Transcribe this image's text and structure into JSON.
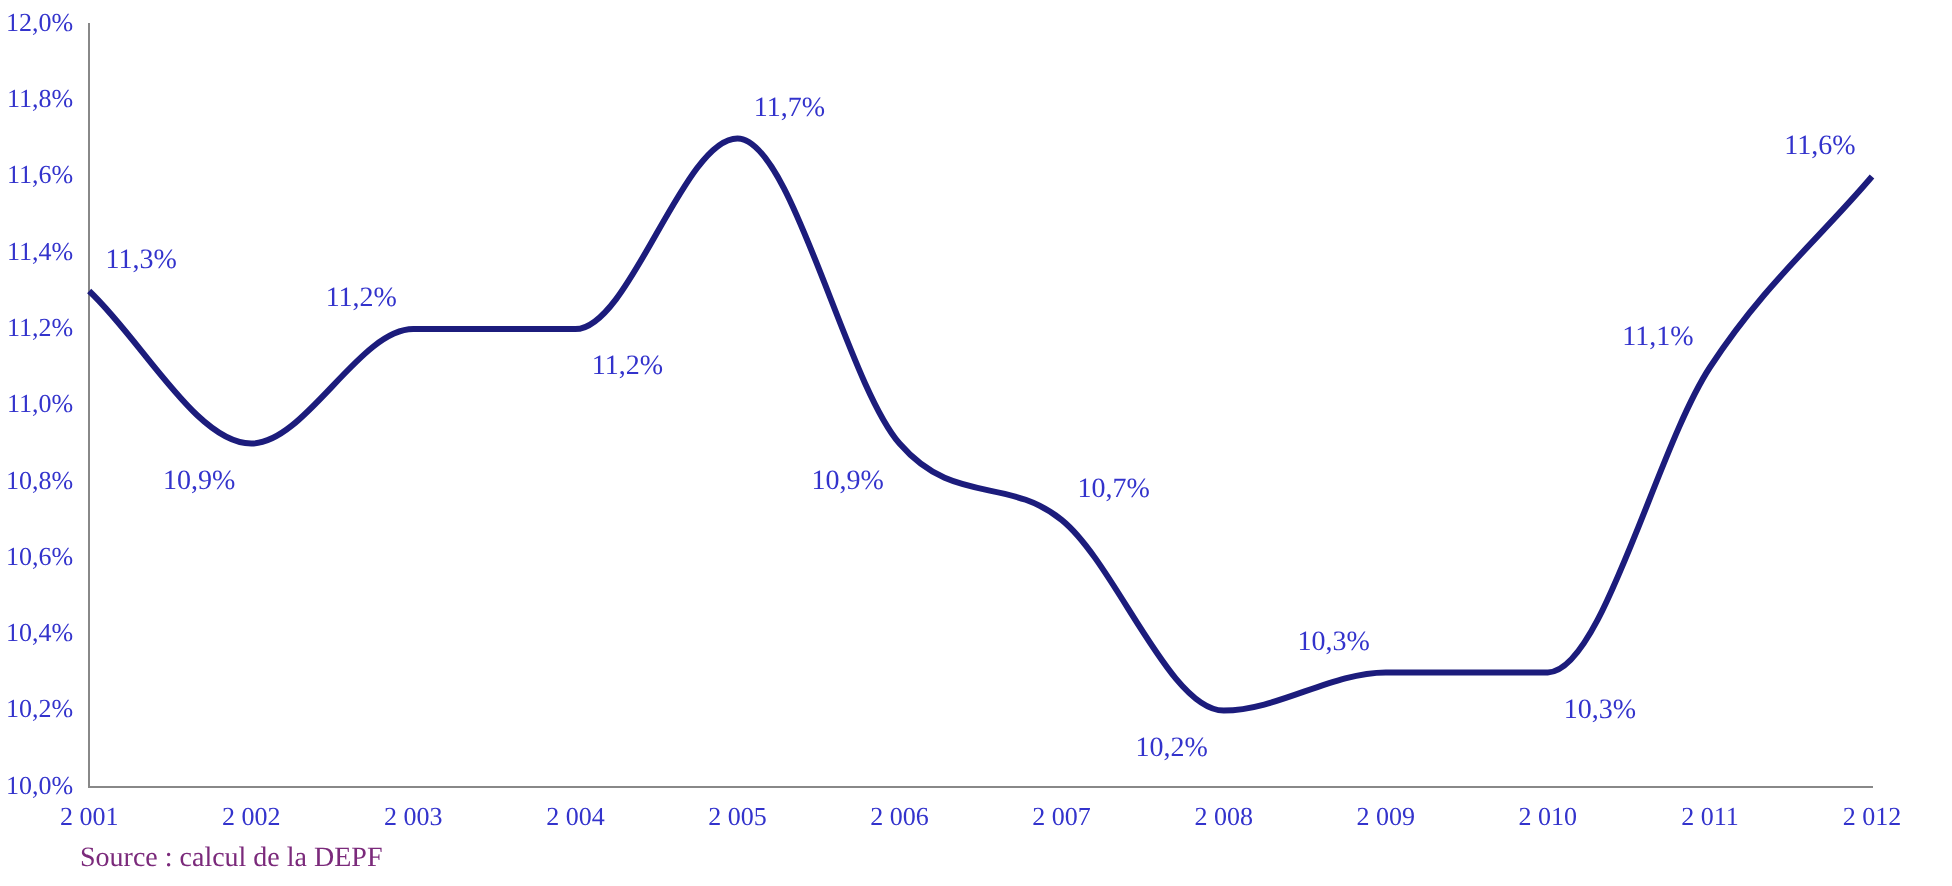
{
  "chart_data": {
    "type": "line",
    "categories": [
      "2 001",
      "2 002",
      "2 003",
      "2 004",
      "2 005",
      "2 006",
      "2 007",
      "2 008",
      "2 009",
      "2 010",
      "2 011",
      "2 012"
    ],
    "series": [
      {
        "color": "#1c1c7c",
        "values": [
          11.3,
          10.9,
          11.2,
          11.2,
          11.7,
          10.9,
          10.7,
          10.2,
          10.3,
          10.3,
          11.1,
          11.6
        ],
        "value_labels": [
          "11,3%",
          "10,9%",
          "11,2%",
          "11,2%",
          "11,7%",
          "10,9%",
          "10,7%",
          "10,2%",
          "10,3%",
          "10,3%",
          "11,1%",
          "11,6%"
        ]
      }
    ],
    "ylim": [
      10.0,
      12.0
    ],
    "yticks": [
      {
        "value": 10.0,
        "label": "10,0%"
      },
      {
        "value": 10.2,
        "label": "10,2%"
      },
      {
        "value": 10.4,
        "label": "10,4%"
      },
      {
        "value": 10.6,
        "label": "10,6%"
      },
      {
        "value": 10.8,
        "label": "10,8%"
      },
      {
        "value": 11.0,
        "label": "11,0%"
      },
      {
        "value": 11.2,
        "label": "11,2%"
      },
      {
        "value": 11.4,
        "label": "11,4%"
      },
      {
        "value": 11.6,
        "label": "11,6%"
      },
      {
        "value": 11.8,
        "label": "11,8%"
      },
      {
        "value": 12.0,
        "label": "12,0%"
      }
    ],
    "grid": false,
    "legend": false,
    "marker": "none",
    "line_style": "solid",
    "annotations": [
      "Source : calcul de la DEPF"
    ]
  }
}
